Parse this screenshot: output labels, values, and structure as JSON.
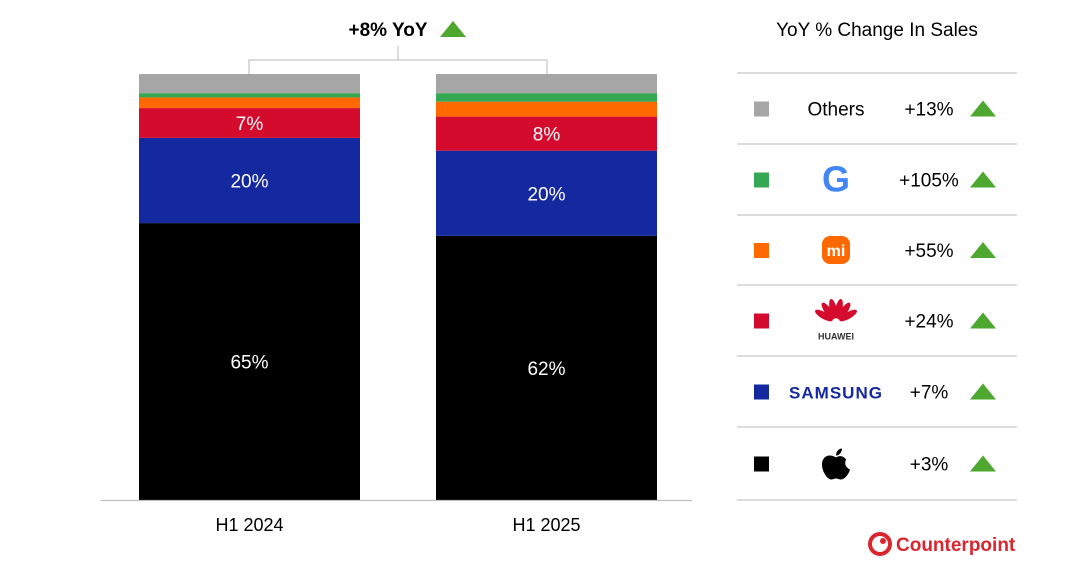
{
  "chart_data": {
    "type": "bar",
    "stacked": true,
    "categories": [
      "H1 2024",
      "H1 2025"
    ],
    "series": [
      {
        "name": "Apple",
        "color": "#000000",
        "values": [
          65,
          62
        ],
        "labels": [
          "65%",
          "62%"
        ]
      },
      {
        "name": "Samsung",
        "color": "#1428A0",
        "values": [
          20,
          20
        ],
        "labels": [
          "20%",
          "20%"
        ]
      },
      {
        "name": "Huawei",
        "color": "#D50B2E",
        "values": [
          7,
          8
        ],
        "labels": [
          "7%",
          "8%"
        ]
      },
      {
        "name": "Xiaomi",
        "color": "#FF6900",
        "values": [
          2.5,
          3.5
        ],
        "labels": [
          "",
          ""
        ]
      },
      {
        "name": "Google",
        "color": "#34A853",
        "values": [
          1,
          2
        ],
        "labels": [
          "",
          ""
        ]
      },
      {
        "name": "Others",
        "color": "#A6A6A6",
        "values": [
          4.5,
          4.5
        ],
        "labels": [
          "",
          ""
        ]
      }
    ],
    "ylim": [
      0,
      100
    ],
    "grid": false,
    "annotation": "+8% YoY",
    "annotation_icon": "triangle-up-icon",
    "up_color": "#4EA72E"
  },
  "legend": {
    "title": "YoY % Change In Sales",
    "rows": [
      {
        "brand": "Others",
        "logo": "text",
        "change": "+13%",
        "color": "#A6A6A6"
      },
      {
        "brand": "Google",
        "logo": "G",
        "change": "+105%",
        "color": "#34A853"
      },
      {
        "brand": "Xiaomi",
        "logo": "mi",
        "change": "+55%",
        "color": "#FF6900"
      },
      {
        "brand": "Huawei",
        "logo": "HUAWEI",
        "change": "+24%",
        "color": "#D50B2E"
      },
      {
        "brand": "Samsung",
        "logo": "SAMSUNG",
        "change": "+7%",
        "color": "#1428A0"
      },
      {
        "brand": "Apple",
        "logo": "apple",
        "change": "+3%",
        "color": "#000000"
      }
    ]
  },
  "branding": {
    "name": "Counterpoint",
    "color": "#D9262F"
  }
}
